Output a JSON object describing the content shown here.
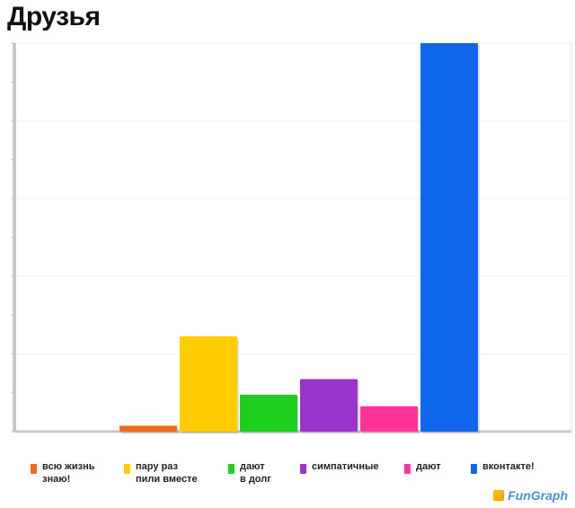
{
  "page": {
    "title": "Друзья"
  },
  "chart_data": {
    "type": "bar",
    "categories": [
      "всю жизнь\nзнаю!",
      "пару раз\nпили вместе",
      "дают\nв долг",
      "симпатичные",
      "дают",
      "вконтакте!"
    ],
    "values": [
      1.5,
      24.5,
      9.5,
      13.5,
      6.5,
      100
    ],
    "colors": [
      "#f26a1b",
      "#ffcc00",
      "#1fcf1f",
      "#9933cc",
      "#ff3399",
      "#1166ee"
    ],
    "ylim": [
      0,
      100
    ],
    "grid": true,
    "legend_position": "bottom"
  },
  "brand": {
    "name": "FunGraph"
  }
}
